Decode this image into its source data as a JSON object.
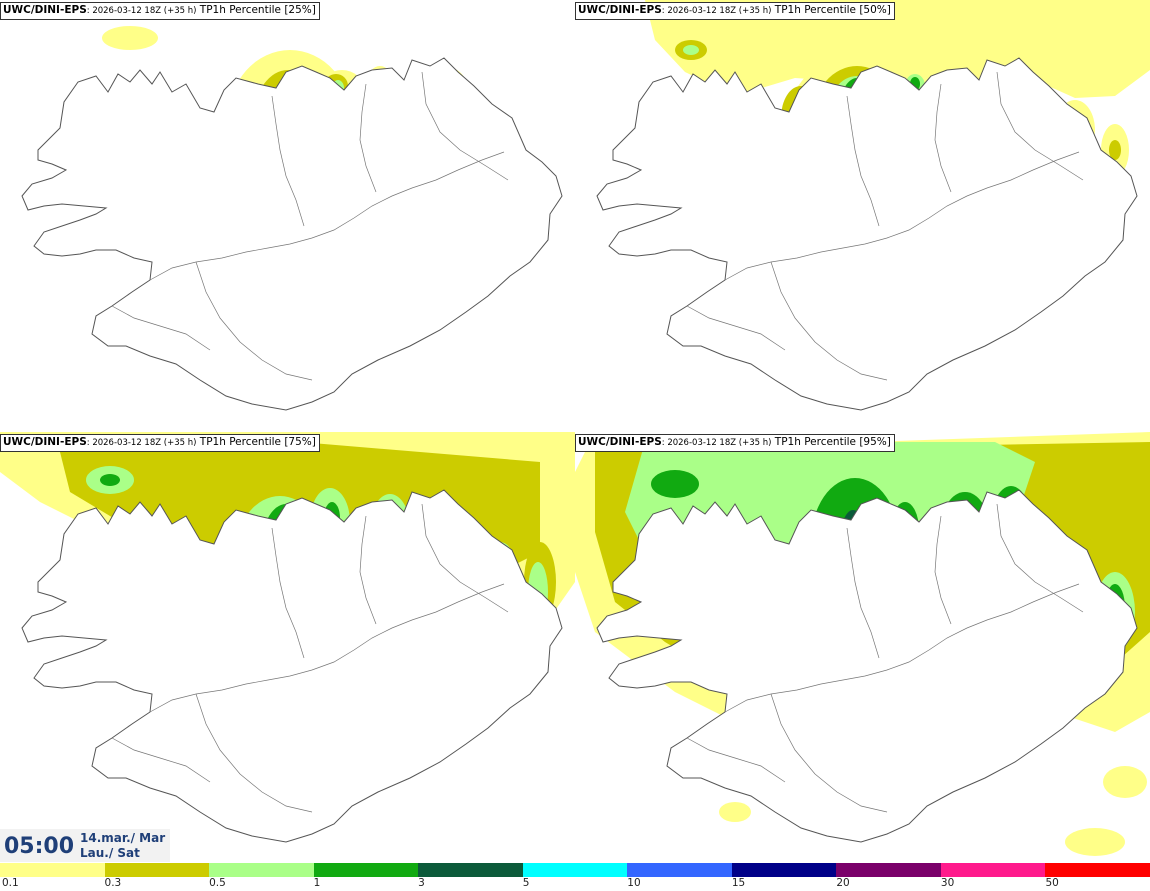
{
  "panels": [
    {
      "model": "UWC/DINI-EPS",
      "run": ": 2026-03-12 18Z (+35 h)",
      "field": " TP1h Percentile [25%]",
      "level": 1
    },
    {
      "model": "UWC/DINI-EPS",
      "run": ": 2026-03-12 18Z (+35 h)",
      "field": " TP1h Percentile [50%]",
      "level": 2
    },
    {
      "model": "UWC/DINI-EPS",
      "run": ": 2026-03-12 18Z (+35 h)",
      "field": " TP1h Percentile [75%]",
      "level": 3
    },
    {
      "model": "UWC/DINI-EPS",
      "run": ": 2026-03-12 18Z (+35 h)",
      "field": " TP1h Percentile [95%]",
      "level": 4
    }
  ],
  "valid_time": {
    "time": "05:00",
    "date_line1": "14.mar./ Mar",
    "date_line2": "Lau./ Sat"
  },
  "legend": {
    "labels": [
      "0.1",
      "0.3",
      "0.5",
      "1",
      "3",
      "5",
      "10",
      "15",
      "20",
      "30",
      "50"
    ],
    "colors": [
      "#ffff88",
      "#cccc00",
      "#aaff88",
      "#11aa11",
      "#0b5a3a",
      "#00ffff",
      "#3366ff",
      "#000088",
      "#7a006a",
      "#ff1a8c",
      "#ff0000"
    ]
  },
  "map_colors": {
    "coast": "#555555",
    "light_yellow": "#ffff88",
    "olive": "#cccc00",
    "light_green": "#aaff88",
    "green": "#11aa11",
    "dark_green": "#0b5a3a",
    "cyan": "#00ffff"
  }
}
